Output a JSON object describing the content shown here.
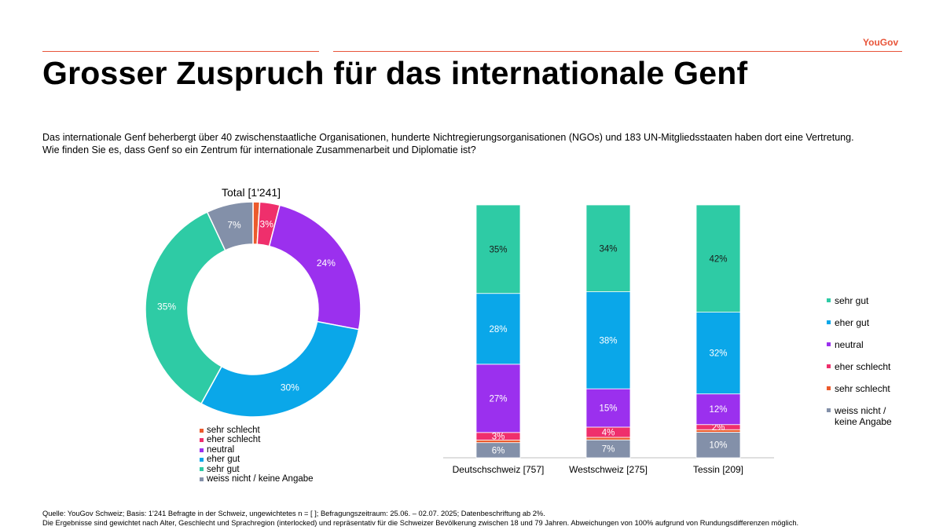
{
  "brand": "YouGov",
  "title": "Grosser Zuspruch für das internationale Genf",
  "intro": {
    "line1": "Das internationale Genf beherbergt über 40 zwischenstaatliche Organisationen, hunderte Nichtregierungsorganisationen (NGOs) und 183 UN-Mitgliedsstaaten haben dort eine Vertretung.",
    "question": "Wie finden Sie es, dass Genf so ein Zentrum für internationale Zusammenarbeit und Diplomatie ist?"
  },
  "colors": {
    "sehr_gut": "#2ecba5",
    "eher_gut": "#0aa7e9",
    "neutral": "#9b30ee",
    "eher_schlecht": "#ef2f6c",
    "sehr_schlecht": "#ec5a2c",
    "weiss_nicht": "#8390a9"
  },
  "chart_data": [
    {
      "type": "pie",
      "variant": "donut",
      "title": "Total [1'241]",
      "categories": [
        "sehr schlecht",
        "eher schlecht",
        "neutral",
        "eher gut",
        "sehr gut",
        "weiss nicht / keine Angabe"
      ],
      "values": [
        1,
        3,
        24,
        30,
        35,
        7
      ],
      "labels": [
        "",
        "3%",
        "24%",
        "30%",
        "35%",
        "7%"
      ],
      "legend": [
        "sehr schlecht",
        "eher schlecht",
        "neutral",
        "eher gut",
        "sehr gut",
        "weiss nicht / keine Angabe"
      ],
      "legend_position": "bottom"
    },
    {
      "type": "bar",
      "stacked": true,
      "categories": [
        "Deutschschweiz [757]",
        "Westschweiz [275]",
        "Tessin [209]"
      ],
      "series": [
        {
          "name": "weiss nicht / keine Angabe",
          "values": [
            6,
            7,
            10
          ],
          "labels": [
            "6%",
            "7%",
            "10%"
          ]
        },
        {
          "name": "sehr schlecht",
          "values": [
            1,
            1,
            1
          ],
          "labels": [
            "",
            "",
            ""
          ]
        },
        {
          "name": "eher schlecht",
          "values": [
            3,
            4,
            2
          ],
          "labels": [
            "3%",
            "4%",
            "2%"
          ]
        },
        {
          "name": "neutral",
          "values": [
            27,
            15,
            12
          ],
          "labels": [
            "27%",
            "15%",
            "12%"
          ]
        },
        {
          "name": "eher gut",
          "values": [
            28,
            38,
            32
          ],
          "labels": [
            "28%",
            "38%",
            "32%"
          ]
        },
        {
          "name": "sehr gut",
          "values": [
            35,
            34,
            42
          ],
          "labels": [
            "35%",
            "34%",
            "42%"
          ]
        }
      ],
      "legend": [
        "sehr gut",
        "eher gut",
        "neutral",
        "eher schlecht",
        "sehr schlecht",
        "weiss nicht / keine Angabe"
      ],
      "legend_labels": [
        [
          "sehr gut"
        ],
        [
          "eher gut"
        ],
        [
          "neutral"
        ],
        [
          "eher schlecht"
        ],
        [
          "sehr schlecht"
        ],
        [
          "weiss nicht /",
          "keine Angabe"
        ]
      ],
      "legend_position": "right"
    }
  ],
  "footnote": {
    "line1": "Quelle: YouGov Schweiz; Basis: 1'241 Befragte in der Schweiz, ungewichtetes n = [ ]; Befragungszeitraum: 25.06. – 02.07. 2025; Datenbeschriftung ab 2%.",
    "line2": "Die Ergebnisse sind gewichtet nach Alter, Geschlecht und Sprachregion (interlocked) und repräsentativ für die Schweizer Bevölkerung zwischen 18 und 79 Jahren. Abweichungen von 100% aufgrund von Rundungsdifferenzen möglich."
  }
}
